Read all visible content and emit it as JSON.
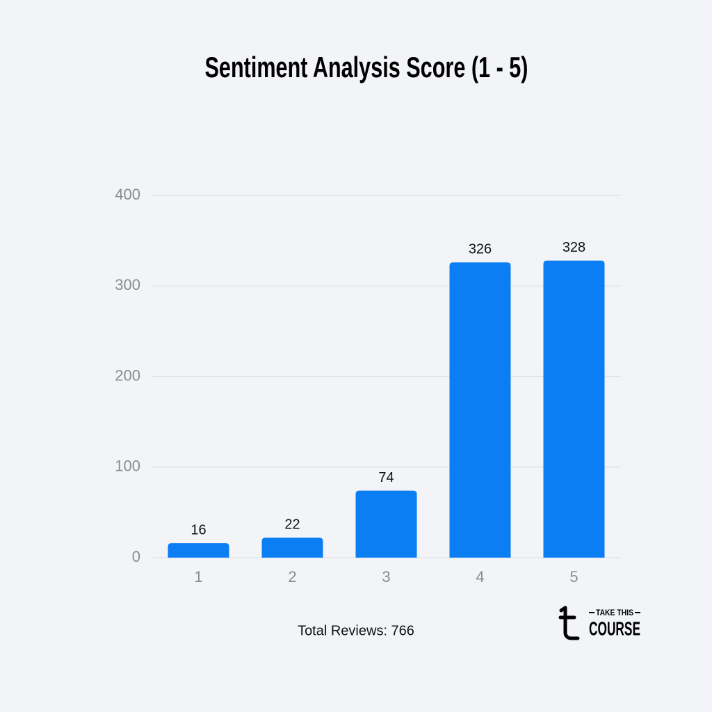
{
  "chart_data": {
    "type": "bar",
    "title": "Sentiment Analysis Score (1 - 5)",
    "categories": [
      "1",
      "2",
      "3",
      "4",
      "5"
    ],
    "values": [
      16,
      22,
      74,
      326,
      328
    ],
    "color": "#0a7ef2",
    "ylim": [
      0,
      400
    ],
    "yticks": [
      0,
      100,
      200,
      300,
      400
    ],
    "grid": true,
    "footer": "Total Reviews: 766",
    "logo": [
      "TAKE THIS",
      "COURSE"
    ]
  }
}
